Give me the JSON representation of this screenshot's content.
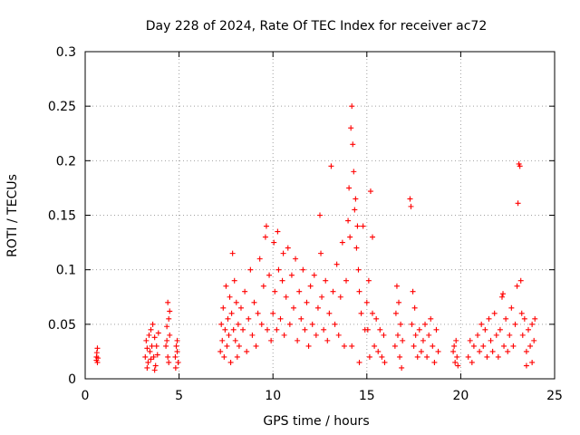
{
  "chart_data": {
    "type": "scatter",
    "title": "Day 228 of 2024, Rate Of TEC Index for receiver ac72",
    "xlabel": "GPS time / hours",
    "ylabel": "ROTI / TECUs",
    "xlim": [
      0,
      25
    ],
    "ylim": [
      0,
      0.3
    ],
    "xticks": [
      0,
      5,
      10,
      15,
      20,
      25
    ],
    "xtick_labels": [
      "0",
      "5",
      "10",
      "15",
      "20",
      "25"
    ],
    "yticks": [
      0,
      0.05,
      0.1,
      0.15,
      0.2,
      0.25,
      0.3
    ],
    "ytick_labels": [
      "0",
      "0.05",
      "0.1",
      "0.15",
      "0.2",
      "0.25",
      "0.3"
    ],
    "grid": true,
    "legend": "none",
    "marker": "plus",
    "color": "#ff0000",
    "series": [
      {
        "values": [
          [
            0.6,
            0.017
          ],
          [
            0.6,
            0.02
          ],
          [
            0.65,
            0.028
          ],
          [
            0.65,
            0.015
          ],
          [
            0.62,
            0.024
          ],
          [
            0.68,
            0.019
          ],
          [
            3.2,
            0.02
          ],
          [
            3.25,
            0.035
          ],
          [
            3.3,
            0.028
          ],
          [
            3.35,
            0.015
          ],
          [
            3.4,
            0.04
          ],
          [
            3.45,
            0.025
          ],
          [
            3.5,
            0.045
          ],
          [
            3.55,
            0.03
          ],
          [
            3.6,
            0.05
          ],
          [
            3.65,
            0.02
          ],
          [
            3.7,
            0.038
          ],
          [
            3.75,
            0.012
          ],
          [
            3.8,
            0.03
          ],
          [
            3.85,
            0.022
          ],
          [
            3.9,
            0.042
          ],
          [
            3.3,
            0.01
          ],
          [
            3.5,
            0.018
          ],
          [
            3.7,
            0.008
          ],
          [
            4.3,
            0.03
          ],
          [
            4.35,
            0.048
          ],
          [
            4.4,
            0.07
          ],
          [
            4.45,
            0.055
          ],
          [
            4.5,
            0.062
          ],
          [
            4.4,
            0.02
          ],
          [
            4.35,
            0.035
          ],
          [
            4.5,
            0.04
          ],
          [
            4.45,
            0.015
          ],
          [
            4.8,
            0.02
          ],
          [
            4.85,
            0.03
          ],
          [
            4.9,
            0.035
          ],
          [
            4.95,
            0.015
          ],
          [
            4.82,
            0.01
          ],
          [
            4.9,
            0.025
          ],
          [
            7.2,
            0.025
          ],
          [
            7.25,
            0.05
          ],
          [
            7.3,
            0.035
          ],
          [
            7.35,
            0.065
          ],
          [
            7.4,
            0.02
          ],
          [
            7.45,
            0.045
          ],
          [
            7.5,
            0.085
          ],
          [
            7.55,
            0.03
          ],
          [
            7.6,
            0.055
          ],
          [
            7.65,
            0.04
          ],
          [
            7.7,
            0.075
          ],
          [
            7.75,
            0.015
          ],
          [
            7.8,
            0.06
          ],
          [
            7.85,
            0.115
          ],
          [
            7.9,
            0.045
          ],
          [
            7.95,
            0.09
          ],
          [
            8.0,
            0.035
          ],
          [
            8.05,
            0.07
          ],
          [
            8.1,
            0.02
          ],
          [
            8.15,
            0.05
          ],
          [
            8.2,
            0.03
          ],
          [
            8.3,
            0.065
          ],
          [
            8.4,
            0.045
          ],
          [
            8.5,
            0.08
          ],
          [
            8.6,
            0.025
          ],
          [
            8.7,
            0.055
          ],
          [
            8.8,
            0.1
          ],
          [
            8.9,
            0.04
          ],
          [
            9.0,
            0.07
          ],
          [
            9.1,
            0.03
          ],
          [
            9.2,
            0.06
          ],
          [
            9.3,
            0.11
          ],
          [
            9.4,
            0.05
          ],
          [
            9.5,
            0.085
          ],
          [
            9.6,
            0.13
          ],
          [
            9.65,
            0.14
          ],
          [
            9.7,
            0.045
          ],
          [
            9.8,
            0.095
          ],
          [
            9.9,
            0.035
          ],
          [
            10.0,
            0.06
          ],
          [
            10.05,
            0.125
          ],
          [
            10.1,
            0.08
          ],
          [
            10.2,
            0.045
          ],
          [
            10.25,
            0.135
          ],
          [
            10.3,
            0.1
          ],
          [
            10.4,
            0.055
          ],
          [
            10.5,
            0.09
          ],
          [
            10.55,
            0.115
          ],
          [
            10.6,
            0.04
          ],
          [
            10.7,
            0.075
          ],
          [
            10.8,
            0.12
          ],
          [
            10.9,
            0.05
          ],
          [
            11.0,
            0.095
          ],
          [
            11.1,
            0.065
          ],
          [
            11.2,
            0.11
          ],
          [
            11.3,
            0.035
          ],
          [
            11.4,
            0.08
          ],
          [
            11.5,
            0.055
          ],
          [
            11.6,
            0.1
          ],
          [
            11.7,
            0.045
          ],
          [
            11.8,
            0.07
          ],
          [
            11.9,
            0.03
          ],
          [
            12.0,
            0.085
          ],
          [
            12.1,
            0.05
          ],
          [
            12.2,
            0.095
          ],
          [
            12.3,
            0.04
          ],
          [
            12.4,
            0.065
          ],
          [
            12.5,
            0.15
          ],
          [
            12.55,
            0.115
          ],
          [
            12.6,
            0.075
          ],
          [
            12.7,
            0.045
          ],
          [
            12.8,
            0.09
          ],
          [
            12.9,
            0.035
          ],
          [
            13.0,
            0.06
          ],
          [
            13.1,
            0.195
          ],
          [
            13.2,
            0.08
          ],
          [
            13.3,
            0.05
          ],
          [
            13.4,
            0.105
          ],
          [
            13.5,
            0.04
          ],
          [
            13.6,
            0.075
          ],
          [
            13.7,
            0.125
          ],
          [
            13.8,
            0.03
          ],
          [
            13.9,
            0.09
          ],
          [
            14.0,
            0.145
          ],
          [
            14.05,
            0.175
          ],
          [
            14.1,
            0.13
          ],
          [
            14.15,
            0.23
          ],
          [
            14.2,
            0.25
          ],
          [
            14.25,
            0.215
          ],
          [
            14.3,
            0.19
          ],
          [
            14.35,
            0.155
          ],
          [
            14.4,
            0.165
          ],
          [
            14.45,
            0.12
          ],
          [
            14.5,
            0.14
          ],
          [
            14.55,
            0.1
          ],
          [
            14.6,
            0.08
          ],
          [
            14.7,
            0.06
          ],
          [
            14.8,
            0.14
          ],
          [
            14.9,
            0.045
          ],
          [
            15.0,
            0.07
          ],
          [
            15.05,
            0.045
          ],
          [
            15.2,
            0.172
          ],
          [
            15.3,
            0.13
          ],
          [
            15.1,
            0.09
          ],
          [
            15.15,
            0.02
          ],
          [
            14.2,
            0.03
          ],
          [
            14.6,
            0.015
          ],
          [
            15.3,
            0.06
          ],
          [
            15.4,
            0.03
          ],
          [
            15.5,
            0.055
          ],
          [
            15.6,
            0.025
          ],
          [
            15.7,
            0.045
          ],
          [
            15.8,
            0.02
          ],
          [
            15.9,
            0.04
          ],
          [
            15.95,
            0.015
          ],
          [
            16.5,
            0.03
          ],
          [
            16.55,
            0.06
          ],
          [
            16.6,
            0.085
          ],
          [
            16.65,
            0.04
          ],
          [
            16.7,
            0.07
          ],
          [
            16.75,
            0.02
          ],
          [
            16.8,
            0.05
          ],
          [
            16.85,
            0.01
          ],
          [
            16.9,
            0.035
          ],
          [
            17.3,
            0.165
          ],
          [
            17.35,
            0.158
          ],
          [
            17.4,
            0.05
          ],
          [
            17.45,
            0.08
          ],
          [
            17.5,
            0.03
          ],
          [
            17.55,
            0.065
          ],
          [
            17.6,
            0.04
          ],
          [
            17.7,
            0.02
          ],
          [
            17.8,
            0.045
          ],
          [
            17.9,
            0.025
          ],
          [
            18.0,
            0.035
          ],
          [
            18.1,
            0.05
          ],
          [
            18.2,
            0.02
          ],
          [
            18.3,
            0.04
          ],
          [
            18.4,
            0.055
          ],
          [
            18.5,
            0.03
          ],
          [
            18.6,
            0.015
          ],
          [
            18.7,
            0.045
          ],
          [
            18.8,
            0.025
          ],
          [
            19.6,
            0.025
          ],
          [
            19.65,
            0.03
          ],
          [
            19.7,
            0.015
          ],
          [
            19.75,
            0.035
          ],
          [
            19.8,
            0.02
          ],
          [
            19.85,
            0.012
          ],
          [
            20.4,
            0.02
          ],
          [
            20.5,
            0.035
          ],
          [
            20.6,
            0.015
          ],
          [
            20.7,
            0.03
          ],
          [
            20.9,
            0.04
          ],
          [
            21.0,
            0.025
          ],
          [
            21.1,
            0.05
          ],
          [
            21.2,
            0.03
          ],
          [
            21.3,
            0.045
          ],
          [
            21.4,
            0.02
          ],
          [
            21.5,
            0.055
          ],
          [
            21.6,
            0.035
          ],
          [
            21.7,
            0.025
          ],
          [
            21.8,
            0.06
          ],
          [
            21.9,
            0.04
          ],
          [
            22.0,
            0.02
          ],
          [
            22.1,
            0.045
          ],
          [
            22.2,
            0.075
          ],
          [
            22.25,
            0.078
          ],
          [
            22.3,
            0.03
          ],
          [
            22.4,
            0.055
          ],
          [
            22.5,
            0.025
          ],
          [
            22.6,
            0.04
          ],
          [
            22.7,
            0.065
          ],
          [
            22.8,
            0.03
          ],
          [
            22.9,
            0.05
          ],
          [
            23.0,
            0.085
          ],
          [
            23.05,
            0.161
          ],
          [
            23.1,
            0.197
          ],
          [
            23.15,
            0.195
          ],
          [
            23.2,
            0.09
          ],
          [
            23.25,
            0.06
          ],
          [
            23.3,
            0.04
          ],
          [
            23.4,
            0.055
          ],
          [
            23.5,
            0.025
          ],
          [
            23.6,
            0.045
          ],
          [
            23.7,
            0.03
          ],
          [
            23.8,
            0.05
          ],
          [
            23.9,
            0.035
          ],
          [
            23.95,
            0.055
          ],
          [
            23.5,
            0.012
          ],
          [
            23.8,
            0.015
          ]
        ]
      }
    ]
  }
}
